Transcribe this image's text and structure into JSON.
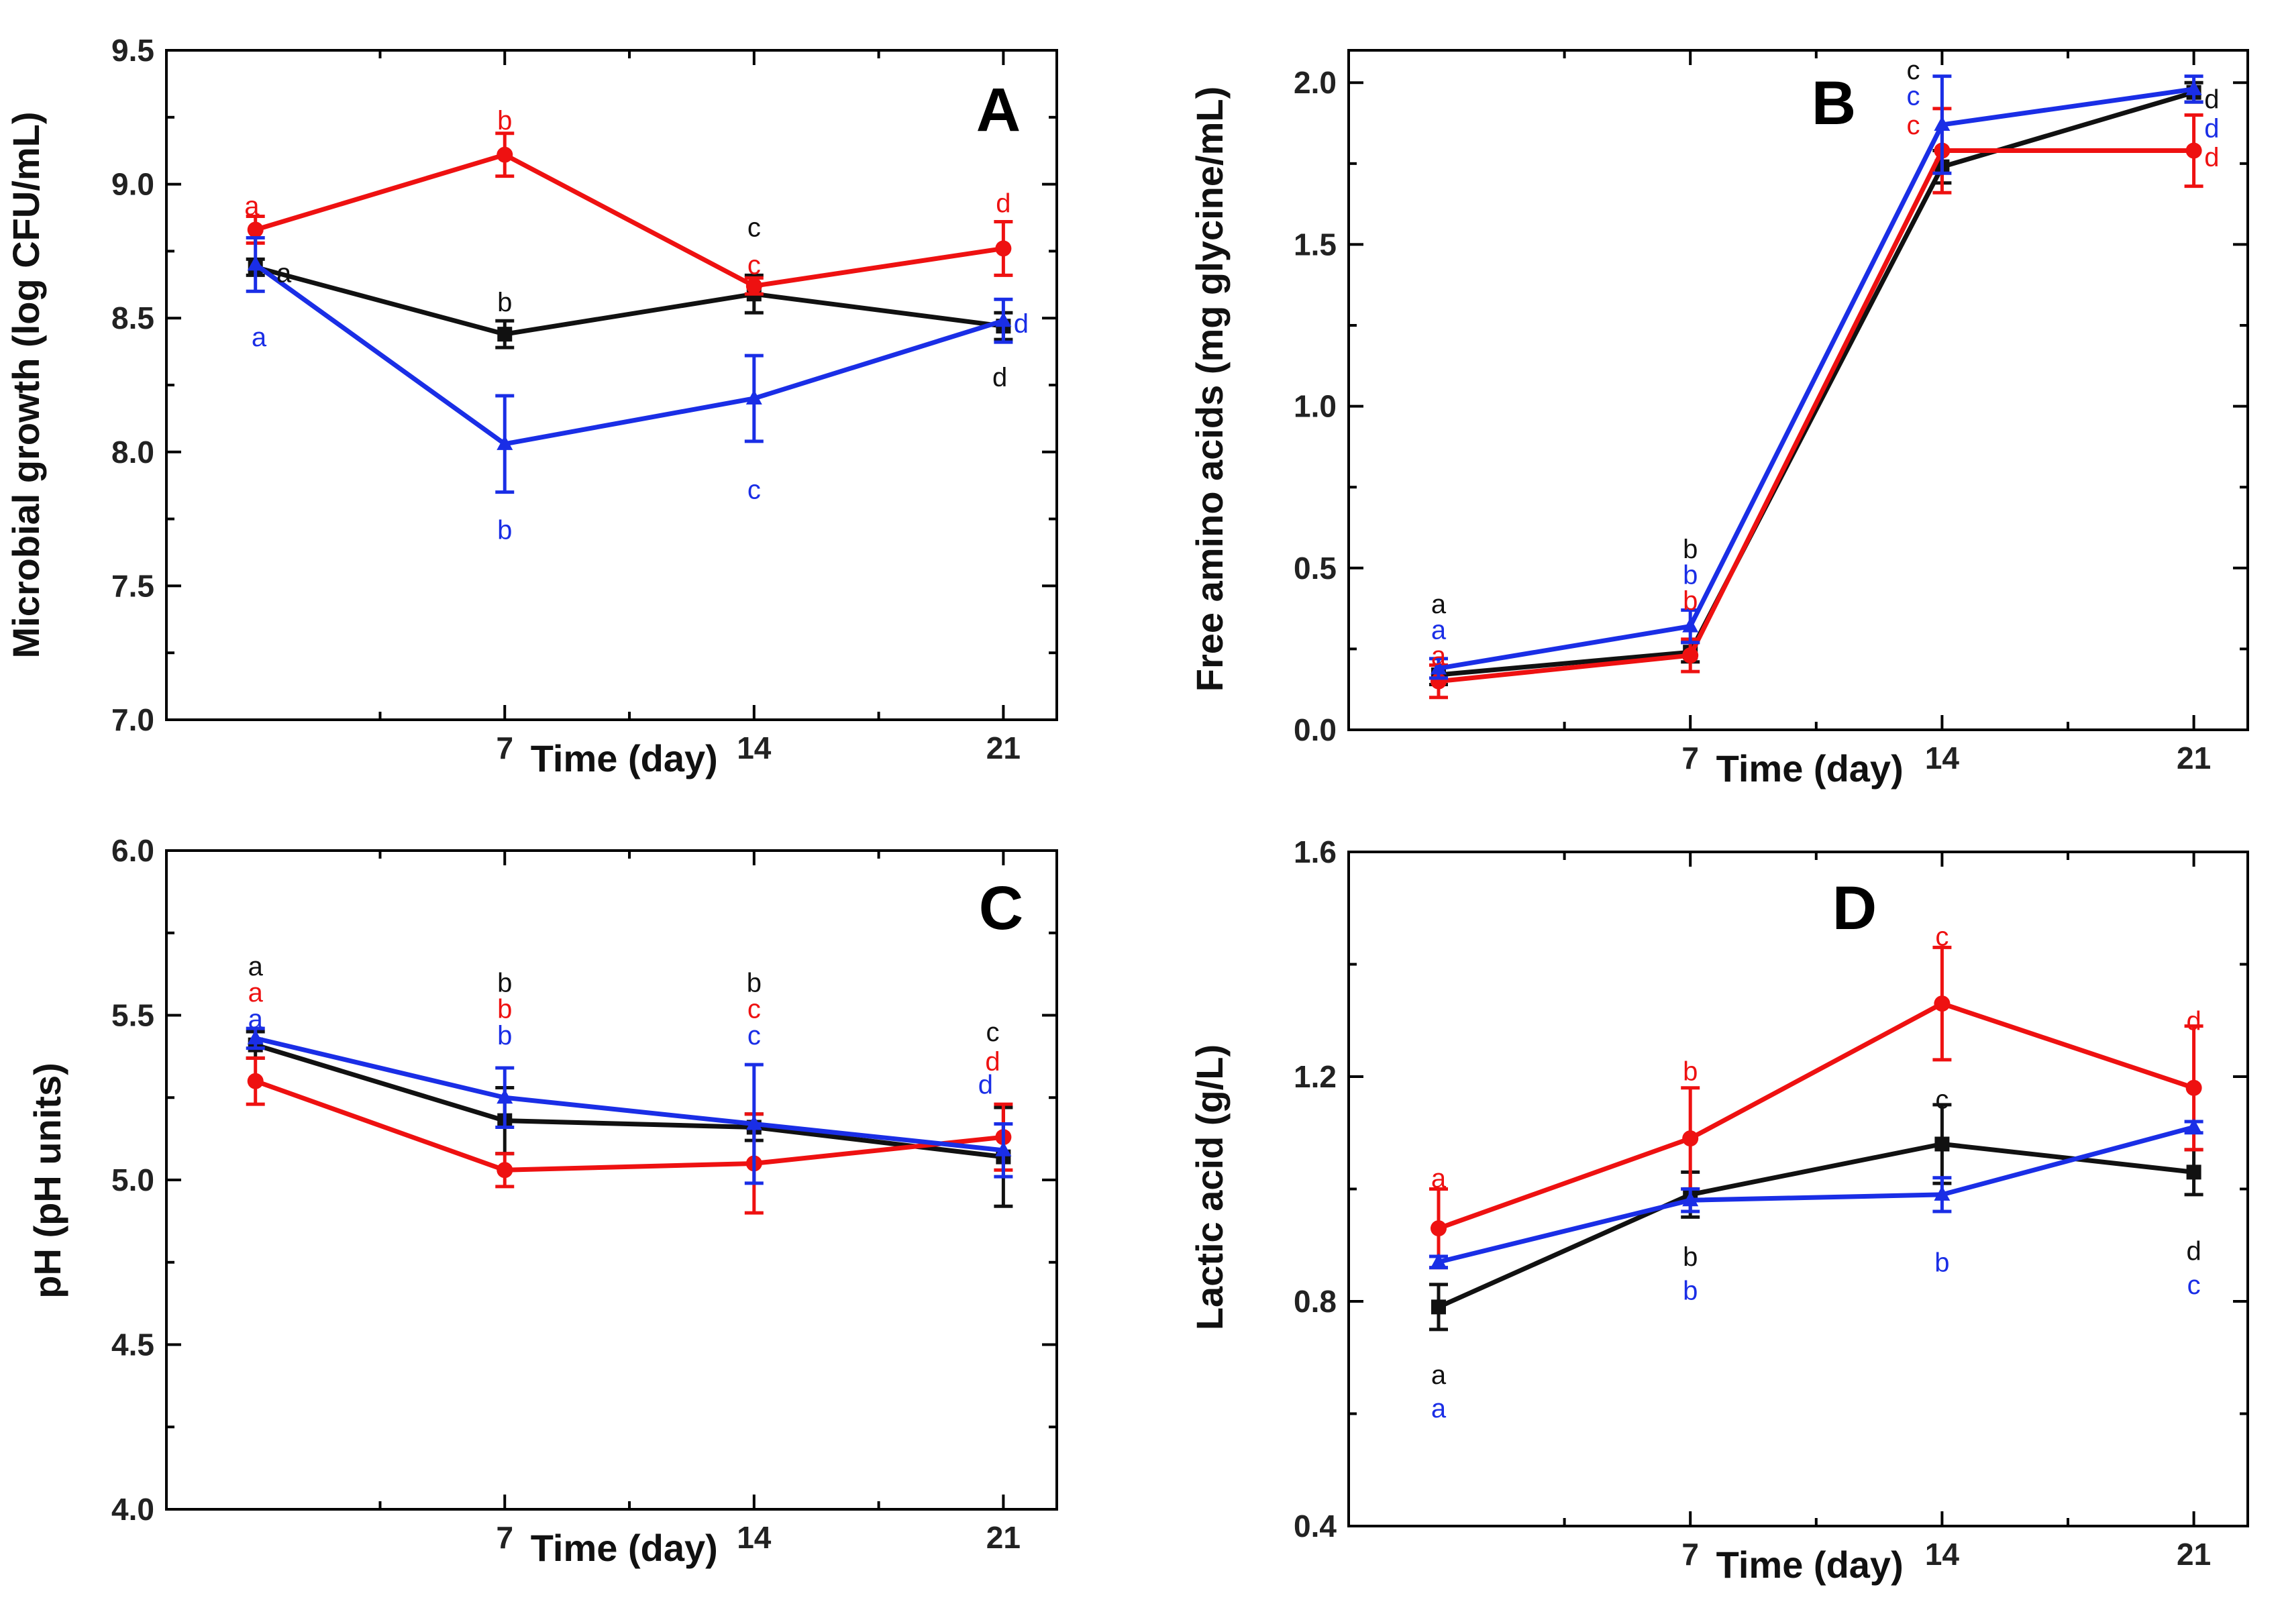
{
  "colors": {
    "black": "#111111",
    "red": "#ee1111",
    "blue": "#1a2ee6"
  },
  "chart_data": [
    {
      "type": "line",
      "panel": "A",
      "title": "",
      "xlabel": "Time (day)",
      "ylabel": "Microbial growth (log CFU/mL)",
      "xlim": [
        -2.5,
        22.5
      ],
      "ylim": [
        7.0,
        9.5
      ],
      "xticks": [
        7,
        14,
        21
      ],
      "yticks": [
        7.0,
        7.5,
        8.0,
        8.5,
        9.0,
        9.5
      ],
      "ytick_labels": [
        "7.0",
        "7.5",
        "8.0",
        "8.5",
        "9.0",
        "9.5"
      ],
      "x": [
        0,
        7,
        14,
        21
      ],
      "series": [
        {
          "name": "black",
          "color": "black",
          "marker": "square",
          "values": [
            8.69,
            8.44,
            8.59,
            8.47
          ],
          "err": [
            0.03,
            0.05,
            0.07,
            0.05
          ]
        },
        {
          "name": "red",
          "color": "red",
          "marker": "circle",
          "values": [
            8.83,
            9.11,
            8.62,
            8.76
          ],
          "err": [
            0.05,
            0.08,
            0.03,
            0.1
          ]
        },
        {
          "name": "blue",
          "color": "blue",
          "marker": "triangle",
          "values": [
            8.7,
            8.03,
            8.2,
            8.49
          ],
          "err": [
            0.1,
            0.18,
            0.16,
            0.08
          ]
        }
      ],
      "annotations": [
        {
          "text": "a",
          "color": "red",
          "x": -0.1,
          "y": 8.92
        },
        {
          "text": "a",
          "color": "black",
          "x": 0.8,
          "y": 8.67
        },
        {
          "text": "a",
          "color": "blue",
          "x": 0.1,
          "y": 8.43
        },
        {
          "text": "b",
          "color": "red",
          "x": 7,
          "y": 9.24
        },
        {
          "text": "b",
          "color": "black",
          "x": 7,
          "y": 8.56
        },
        {
          "text": "b",
          "color": "blue",
          "x": 7,
          "y": 7.71
        },
        {
          "text": "c",
          "color": "black",
          "x": 14,
          "y": 8.84
        },
        {
          "text": "c",
          "color": "red",
          "x": 14,
          "y": 8.7
        },
        {
          "text": "c",
          "color": "blue",
          "x": 14,
          "y": 7.86
        },
        {
          "text": "d",
          "color": "red",
          "x": 21,
          "y": 8.93
        },
        {
          "text": "d",
          "color": "blue",
          "x": 21.5,
          "y": 8.48
        },
        {
          "text": "d",
          "color": "black",
          "x": 20.9,
          "y": 8.28
        }
      ]
    },
    {
      "type": "line",
      "panel": "B",
      "title": "",
      "xlabel": "Time (day)",
      "ylabel": "Free amino acids (mg glycine/mL)",
      "xlim": [
        -2.5,
        22.5
      ],
      "ylim": [
        0.0,
        2.1
      ],
      "xticks": [
        7,
        14,
        21
      ],
      "yticks": [
        0.0,
        0.5,
        1.0,
        1.5,
        2.0
      ],
      "ytick_labels": [
        "0.0",
        "0.5",
        "1.0",
        "1.5",
        "2.0"
      ],
      "x": [
        0,
        7,
        14,
        21
      ],
      "series": [
        {
          "name": "black",
          "color": "black",
          "marker": "square",
          "values": [
            0.17,
            0.24,
            1.74,
            1.97
          ],
          "err": [
            0.03,
            0.03,
            0.05,
            0.03
          ]
        },
        {
          "name": "red",
          "color": "red",
          "marker": "circle",
          "values": [
            0.15,
            0.23,
            1.79,
            1.79
          ],
          "err": [
            0.05,
            0.05,
            0.13,
            0.11
          ]
        },
        {
          "name": "blue",
          "color": "blue",
          "marker": "triangle",
          "values": [
            0.19,
            0.32,
            1.87,
            1.98
          ],
          "err": [
            0.03,
            0.05,
            0.15,
            0.04
          ]
        }
      ],
      "annotations": [
        {
          "text": "a",
          "color": "black",
          "x": 0,
          "y": 0.39
        },
        {
          "text": "a",
          "color": "blue",
          "x": 0,
          "y": 0.31
        },
        {
          "text": "a",
          "color": "red",
          "x": 0,
          "y": 0.23
        },
        {
          "text": "b",
          "color": "black",
          "x": 7,
          "y": 0.56
        },
        {
          "text": "b",
          "color": "blue",
          "x": 7,
          "y": 0.48
        },
        {
          "text": "b",
          "color": "red",
          "x": 7,
          "y": 0.4
        },
        {
          "text": "c",
          "color": "black",
          "x": 13.2,
          "y": 2.04
        },
        {
          "text": "c",
          "color": "blue",
          "x": 13.2,
          "y": 1.96
        },
        {
          "text": "c",
          "color": "red",
          "x": 13.2,
          "y": 1.87
        },
        {
          "text": "d",
          "color": "black",
          "x": 21.5,
          "y": 1.95
        },
        {
          "text": "d",
          "color": "blue",
          "x": 21.5,
          "y": 1.86
        },
        {
          "text": "d",
          "color": "red",
          "x": 21.5,
          "y": 1.77
        }
      ]
    },
    {
      "type": "line",
      "panel": "C",
      "title": "",
      "xlabel": "Time (day)",
      "ylabel": "pH (pH units)",
      "xlim": [
        -2.5,
        22.5
      ],
      "ylim": [
        4.0,
        6.0
      ],
      "xticks": [
        7,
        14,
        21
      ],
      "yticks": [
        4.0,
        4.5,
        5.0,
        5.5,
        6.0
      ],
      "ytick_labels": [
        "4.0",
        "4.5",
        "5.0",
        "5.5",
        "6.0"
      ],
      "x": [
        0,
        7,
        14,
        21
      ],
      "series": [
        {
          "name": "black",
          "color": "black",
          "marker": "square",
          "values": [
            5.41,
            5.18,
            5.16,
            5.07
          ],
          "err": [
            0.04,
            0.1,
            0.04,
            0.15
          ]
        },
        {
          "name": "red",
          "color": "red",
          "marker": "circle",
          "values": [
            5.3,
            5.03,
            5.05,
            5.13
          ],
          "err": [
            0.07,
            0.05,
            0.15,
            0.1
          ]
        },
        {
          "name": "blue",
          "color": "blue",
          "marker": "triangle",
          "values": [
            5.43,
            5.25,
            5.17,
            5.09
          ],
          "err": [
            0.03,
            0.09,
            0.18,
            0.08
          ]
        }
      ],
      "annotations": [
        {
          "text": "a",
          "color": "black",
          "x": 0,
          "y": 5.65
        },
        {
          "text": "a",
          "color": "red",
          "x": 0,
          "y": 5.57
        },
        {
          "text": "a",
          "color": "blue",
          "x": 0,
          "y": 5.49
        },
        {
          "text": "b",
          "color": "black",
          "x": 7,
          "y": 5.6
        },
        {
          "text": "b",
          "color": "red",
          "x": 7,
          "y": 5.52
        },
        {
          "text": "b",
          "color": "blue",
          "x": 7,
          "y": 5.44
        },
        {
          "text": "b",
          "color": "black",
          "x": 14,
          "y": 5.6
        },
        {
          "text": "c",
          "color": "red",
          "x": 14,
          "y": 5.52
        },
        {
          "text": "c",
          "color": "blue",
          "x": 14,
          "y": 5.44
        },
        {
          "text": "c",
          "color": "black",
          "x": 20.7,
          "y": 5.45
        },
        {
          "text": "d",
          "color": "red",
          "x": 20.7,
          "y": 5.36
        },
        {
          "text": "d",
          "color": "blue",
          "x": 20.5,
          "y": 5.29
        }
      ]
    },
    {
      "type": "line",
      "panel": "D",
      "title": "",
      "xlabel": "Time (day)",
      "ylabel": "Lactic acid (g/L)",
      "xlim": [
        -2.5,
        22.5
      ],
      "ylim": [
        0.4,
        1.6
      ],
      "xticks": [
        7,
        14,
        21
      ],
      "yticks": [
        0.4,
        0.8,
        1.2,
        1.6
      ],
      "ytick_labels": [
        "0.4",
        "0.8",
        "1.2",
        "1.6"
      ],
      "x": [
        0,
        7,
        14,
        21
      ],
      "series": [
        {
          "name": "black",
          "color": "black",
          "marker": "square",
          "values": [
            0.79,
            0.99,
            1.08,
            1.03
          ],
          "err": [
            0.04,
            0.04,
            0.07,
            0.04
          ]
        },
        {
          "name": "red",
          "color": "red",
          "marker": "circle",
          "values": [
            0.93,
            1.09,
            1.33,
            1.18
          ],
          "err": [
            0.07,
            0.09,
            0.1,
            0.11
          ]
        },
        {
          "name": "blue",
          "color": "blue",
          "marker": "triangle",
          "values": [
            0.87,
            0.98,
            0.99,
            1.11
          ],
          "err": [
            0.01,
            0.02,
            0.03,
            0.01
          ]
        }
      ],
      "annotations": [
        {
          "text": "a",
          "color": "red",
          "x": 0,
          "y": 1.02
        },
        {
          "text": "a",
          "color": "black",
          "x": 0,
          "y": 0.67
        },
        {
          "text": "a",
          "color": "blue",
          "x": 0,
          "y": 0.61
        },
        {
          "text": "b",
          "color": "red",
          "x": 7,
          "y": 1.21
        },
        {
          "text": "b",
          "color": "black",
          "x": 7,
          "y": 0.88
        },
        {
          "text": "b",
          "color": "blue",
          "x": 7,
          "y": 0.82
        },
        {
          "text": "c",
          "color": "red",
          "x": 14,
          "y": 1.45
        },
        {
          "text": "c",
          "color": "black",
          "x": 14,
          "y": 1.16
        },
        {
          "text": "b",
          "color": "blue",
          "x": 14,
          "y": 0.87
        },
        {
          "text": "d",
          "color": "red",
          "x": 21,
          "y": 1.3
        },
        {
          "text": "d",
          "color": "black",
          "x": 21,
          "y": 0.89
        },
        {
          "text": "c",
          "color": "blue",
          "x": 21,
          "y": 0.83
        }
      ]
    }
  ]
}
